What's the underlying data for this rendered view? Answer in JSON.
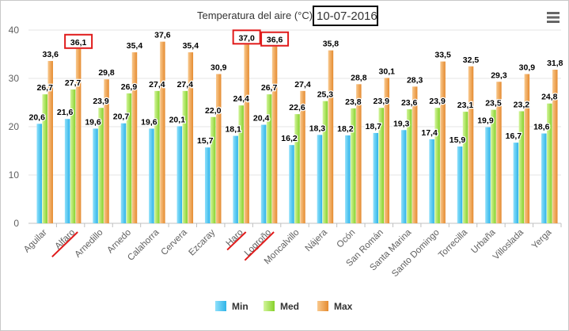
{
  "chart_data": {
    "type": "bar",
    "title": "Temperatura del aire (°C)",
    "date": "10-07-2016",
    "ylim": [
      0,
      40
    ],
    "yticks": [
      0,
      10,
      20,
      30,
      40
    ],
    "categories": [
      "Aguilar",
      "Alfaro",
      "Arnedillo",
      "Arnedo",
      "Calahorra",
      "Cervera",
      "Ezcaray",
      "Haro",
      "Logroño",
      "Moncalvillo",
      "Nájera",
      "Ocón",
      "San Román",
      "Santa Marina",
      "Santo Domingo",
      "Torrecilla",
      "Urbaña",
      "Villoslada",
      "Yerga"
    ],
    "series": [
      {
        "name": "Min",
        "color": "#4fc3f0",
        "values": [
          20.6,
          21.6,
          19.6,
          20.7,
          19.6,
          20.1,
          15.7,
          18.1,
          20.4,
          16.2,
          18.3,
          18.2,
          18.7,
          19.3,
          17.4,
          15.9,
          19.9,
          16.7,
          18.6
        ]
      },
      {
        "name": "Med",
        "color": "#a4e24a",
        "values": [
          26.7,
          27.7,
          23.9,
          26.9,
          27.4,
          27.4,
          22.0,
          24.4,
          26.7,
          22.6,
          25.3,
          23.8,
          23.9,
          23.6,
          23.9,
          23.1,
          23.5,
          23.2,
          24.8
        ]
      },
      {
        "name": "Max",
        "color": "#f0a050",
        "values": [
          33.6,
          36.1,
          29.8,
          35.4,
          37.6,
          35.4,
          30.9,
          37.0,
          36.6,
          27.4,
          35.8,
          28.8,
          30.1,
          28.3,
          33.5,
          32.5,
          29.3,
          30.9,
          31.8
        ]
      }
    ],
    "annotations": {
      "boxed_values": [
        {
          "category": "Alfaro",
          "series": "Max",
          "value": 36.1
        },
        {
          "category": "Haro",
          "series": "Max",
          "value": 37.0
        },
        {
          "category": "Logroño",
          "series": "Max",
          "value": 36.6
        }
      ],
      "struck_categories": [
        "Alfaro",
        "Haro",
        "Logroño"
      ]
    },
    "legend": [
      "Min",
      "Med",
      "Max"
    ],
    "legend_position": "bottom-center"
  },
  "toolbar": {
    "menu_icon": "hamburger-menu-icon"
  },
  "colors": {
    "annotation_red": "#e01b1b",
    "box_black": "#000000",
    "grid": "#e6e6e6",
    "axis": "#c0c0c0"
  }
}
